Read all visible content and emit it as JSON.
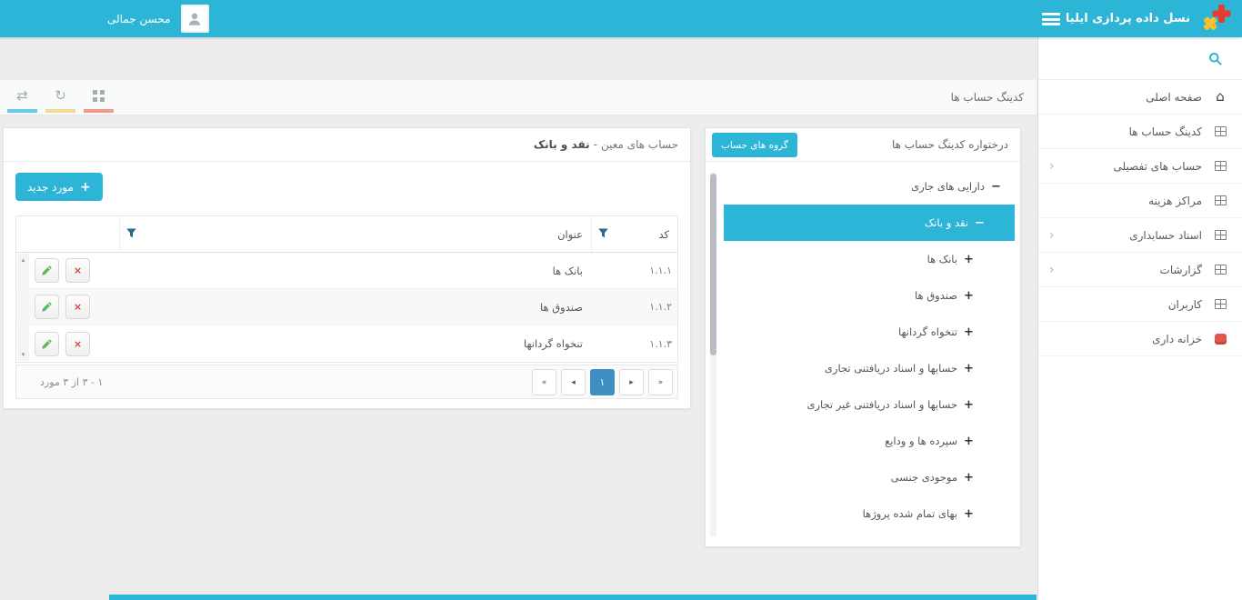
{
  "app": {
    "brand_title": "نسل داده پردازی ایلیا",
    "user_name": "محسن جمالی",
    "accent_color": "#2db5d8",
    "active_page_color": "#3e8ec4"
  },
  "sidebar": {
    "search_placeholder": "",
    "items": [
      {
        "id": "home",
        "label": "صفحه اصلی",
        "icon": "home-icon",
        "expandable": false
      },
      {
        "id": "account-coding",
        "label": "کدینگ حساب ها",
        "icon": "grid-icon",
        "expandable": false
      },
      {
        "id": "detail-accounts",
        "label": "حساب های تفصیلی",
        "icon": "grid-icon",
        "expandable": true
      },
      {
        "id": "cost-centers",
        "label": "مراکز هزینه",
        "icon": "grid-icon",
        "expandable": false
      },
      {
        "id": "accounting-documents",
        "label": "اسناد حسابداری",
        "icon": "grid-icon",
        "expandable": true
      },
      {
        "id": "reports",
        "label": "گزارشات",
        "icon": "grid-icon",
        "expandable": true
      },
      {
        "id": "users",
        "label": "کاربران",
        "icon": "grid-icon",
        "expandable": false
      },
      {
        "id": "treasury",
        "label": "خزانه داری",
        "icon": "treasury-icon",
        "expandable": false
      }
    ]
  },
  "breadcrumb": {
    "title": "کدینگ حساب ها"
  },
  "toolbar_icons": [
    {
      "name": "swap-arrows-icon",
      "glyph": "⇄",
      "underline_color": "#68c9e8"
    },
    {
      "name": "refresh-icon",
      "glyph": "↻",
      "underline_color": "#f2d996"
    },
    {
      "name": "grid-4-icon",
      "glyph": "",
      "underline_color": "#ef9b8b"
    }
  ],
  "tree_panel": {
    "title": "درختواره کدینگ حساب ها",
    "groups_button": "گروه های حساب",
    "items": [
      {
        "label": "دارایی های جاری",
        "level": 1,
        "state": "expanded",
        "selected": false
      },
      {
        "label": "نقد و بانک",
        "level": 2,
        "state": "expanded",
        "selected": true
      },
      {
        "label": "بانک ها",
        "level": 3,
        "state": "collapsed",
        "selected": false
      },
      {
        "label": "صندوق ها",
        "level": 3,
        "state": "collapsed",
        "selected": false
      },
      {
        "label": "تنخواه گردانها",
        "level": 3,
        "state": "collapsed",
        "selected": false
      },
      {
        "label": "حسابها و اسناد دریافتنی تجاری",
        "level": 3,
        "state": "collapsed",
        "selected": false
      },
      {
        "label": "حسابها و اسناد دریافتنی غیر تجاری",
        "level": 3,
        "state": "collapsed",
        "selected": false
      },
      {
        "label": "سپرده ها و ودایع",
        "level": 3,
        "state": "collapsed",
        "selected": false
      },
      {
        "label": "موجودی جنسی",
        "level": 3,
        "state": "collapsed",
        "selected": false
      },
      {
        "label": "بهای تمام شده پروژها",
        "level": 3,
        "state": "collapsed",
        "selected": false
      }
    ]
  },
  "grid_panel": {
    "title_prefix": "حساب های معین",
    "title_separator": "-",
    "title_current": "نقد و بانک",
    "new_item_button": "مورد جدید",
    "table": {
      "columns": {
        "code": "کد",
        "title": "عنوان"
      },
      "rows": [
        {
          "code": "۱.۱.۱",
          "title": "بانک ها"
        },
        {
          "code": "۱.۱.۲",
          "title": "صندوق ها"
        },
        {
          "code": "۱.۱.۳",
          "title": "تنخواه گردانها"
        }
      ]
    },
    "pager": {
      "info": "۱ - ۳ از ۳ مورد",
      "buttons": [
        {
          "name": "pager-first",
          "glyph": "«",
          "active": false
        },
        {
          "name": "pager-prev",
          "glyph": "◂",
          "active": false
        },
        {
          "name": "pager-page-1",
          "glyph": "۱",
          "active": true
        },
        {
          "name": "pager-next",
          "glyph": "▸",
          "active": false
        },
        {
          "name": "pager-last",
          "glyph": "»",
          "active": false
        }
      ]
    }
  }
}
